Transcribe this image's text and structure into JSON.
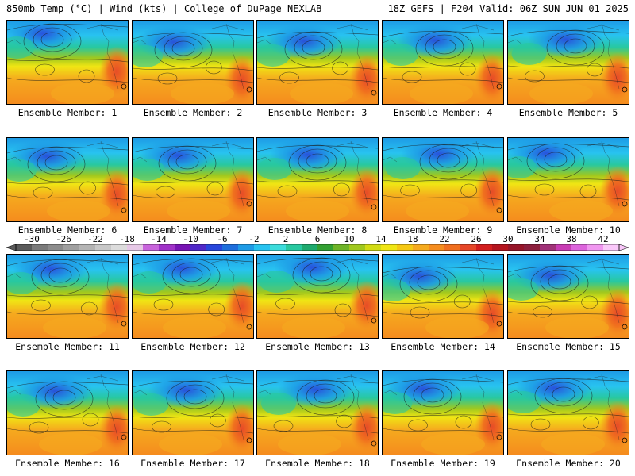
{
  "header": {
    "left": "850mb Temp (°C) | Wind (kts) | College of DuPage NEXLAB",
    "right": "18Z GEFS | F204 Valid: 06Z SUN JUN 01 2025"
  },
  "members": [
    {
      "label": "Ensemble Member: 1"
    },
    {
      "label": "Ensemble Member: 2"
    },
    {
      "label": "Ensemble Member: 3"
    },
    {
      "label": "Ensemble Member: 4"
    },
    {
      "label": "Ensemble Member: 5"
    },
    {
      "label": "Ensemble Member: 6"
    },
    {
      "label": "Ensemble Member: 7"
    },
    {
      "label": "Ensemble Member: 8"
    },
    {
      "label": "Ensemble Member: 9"
    },
    {
      "label": "Ensemble Member: 10"
    },
    {
      "label": "Ensemble Member: 11"
    },
    {
      "label": "Ensemble Member: 12"
    },
    {
      "label": "Ensemble Member: 13"
    },
    {
      "label": "Ensemble Member: 14"
    },
    {
      "label": "Ensemble Member: 15"
    },
    {
      "label": "Ensemble Member: 16"
    },
    {
      "label": "Ensemble Member: 17"
    },
    {
      "label": "Ensemble Member: 18"
    },
    {
      "label": "Ensemble Member: 19"
    },
    {
      "label": "Ensemble Member: 20"
    }
  ],
  "colorbar": {
    "tick_labels": [
      "-30",
      "-26",
      "-22",
      "-18",
      "-14",
      "-10",
      "-6",
      "-2",
      "2",
      "6",
      "10",
      "14",
      "18",
      "22",
      "26",
      "30",
      "34",
      "38",
      "42"
    ],
    "colors": [
      "#5a5a5a",
      "#7a7a7a",
      "#8c8c8c",
      "#a0a0a0",
      "#b4b4b4",
      "#c8c8c8",
      "#dcdcdc",
      "#e6c8e6",
      "#c864dc",
      "#a032c8",
      "#7814b4",
      "#5028c8",
      "#2846dc",
      "#1e6edc",
      "#1e9be6",
      "#28c3f0",
      "#3cdcdc",
      "#28c8a0",
      "#1eaa6e",
      "#32a032",
      "#6eb428",
      "#a0c81e",
      "#d2dc14",
      "#f0e614",
      "#f5c814",
      "#f5aa1e",
      "#f58c1e",
      "#f06e1e",
      "#e64628",
      "#d21e1e",
      "#b4141e",
      "#961428",
      "#8c1e3c",
      "#a03278",
      "#c83cb4",
      "#dc64dc",
      "#f096f0",
      "#fac8fa"
    ]
  }
}
